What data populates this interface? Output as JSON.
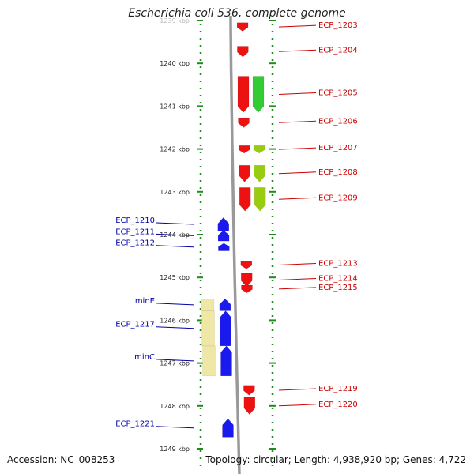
{
  "title": "Escherichia coli 536, complete genome",
  "footer": {
    "accession": "Accession: NC_008253",
    "summary": "Topology: circular; Length: 4,938,920 bp; Genes: 4,722"
  },
  "colors": {
    "plus_label": "#cc0000",
    "minus_label": "#0000aa",
    "gene_red": "#ee1111",
    "gene_blue": "#1a1aee",
    "cds_green": "#33cc33",
    "cds_lime": "#99cc11",
    "cds_yellow": "#eee7a6",
    "backbone": "#999999",
    "ticks": "#228822"
  },
  "ruler": {
    "unit": "kbp",
    "ticks": [
      {
        "kbp": 1239,
        "label": "1239 kbp",
        "faded": true
      },
      {
        "kbp": 1240,
        "label": "1240 kbp"
      },
      {
        "kbp": 1241,
        "label": "1241 kbp"
      },
      {
        "kbp": 1242,
        "label": "1242 kbp"
      },
      {
        "kbp": 1243,
        "label": "1243 kbp"
      },
      {
        "kbp": 1244,
        "label": "1244 kbp"
      },
      {
        "kbp": 1245,
        "label": "1245 kbp"
      },
      {
        "kbp": 1246,
        "label": "1246 kbp"
      },
      {
        "kbp": 1247,
        "label": "1247 kbp"
      },
      {
        "kbp": 1248,
        "label": "1248 kbp"
      },
      {
        "kbp": 1249,
        "label": "1249 kbp"
      }
    ]
  },
  "genes": [
    {
      "label": "ECP_1203",
      "strand": "+",
      "start_kbp": 1239.05,
      "end_kbp": 1239.25
    },
    {
      "label": "ECP_1204",
      "strand": "+",
      "start_kbp": 1239.6,
      "end_kbp": 1239.85
    },
    {
      "label": "ECP_1205",
      "strand": "+",
      "start_kbp": 1240.3,
      "end_kbp": 1241.15,
      "cds": "green"
    },
    {
      "label": "ECP_1206",
      "strand": "+",
      "start_kbp": 1241.27,
      "end_kbp": 1241.5
    },
    {
      "label": "ECP_1207",
      "strand": "+",
      "start_kbp": 1241.92,
      "end_kbp": 1242.1,
      "cds": "lime"
    },
    {
      "label": "ECP_1208",
      "strand": "+",
      "start_kbp": 1242.38,
      "end_kbp": 1242.77,
      "cds": "lime"
    },
    {
      "label": "ECP_1209",
      "strand": "+",
      "start_kbp": 1242.9,
      "end_kbp": 1243.45,
      "cds": "lime"
    },
    {
      "label": "ECP_1210",
      "strand": "-",
      "start_kbp": 1243.6,
      "end_kbp": 1243.92
    },
    {
      "label": "ECP_1211",
      "strand": "-",
      "start_kbp": 1243.9,
      "end_kbp": 1244.15
    },
    {
      "label": "ECP_1212",
      "strand": "-",
      "start_kbp": 1244.2,
      "end_kbp": 1244.38
    },
    {
      "label": "ECP_1213",
      "strand": "+",
      "start_kbp": 1244.62,
      "end_kbp": 1244.8
    },
    {
      "label": "ECP_1214",
      "strand": "+",
      "start_kbp": 1244.9,
      "end_kbp": 1245.22
    },
    {
      "label": "ECP_1215",
      "strand": "+",
      "start_kbp": 1245.18,
      "end_kbp": 1245.36
    },
    {
      "label": "minE",
      "strand": "-",
      "start_kbp": 1245.5,
      "end_kbp": 1245.78,
      "cds": "yellow"
    },
    {
      "label": "ECP_1217",
      "strand": "-",
      "start_kbp": 1245.78,
      "end_kbp": 1246.6,
      "cds": "yellow"
    },
    {
      "label": "minC",
      "strand": "-",
      "start_kbp": 1246.6,
      "end_kbp": 1247.3,
      "cds": "yellow"
    },
    {
      "label": "ECP_1219",
      "strand": "+",
      "start_kbp": 1247.52,
      "end_kbp": 1247.75
    },
    {
      "label": "ECP_1220",
      "strand": "+",
      "start_kbp": 1247.8,
      "end_kbp": 1248.2
    },
    {
      "label": "ECP_1221",
      "strand": "-",
      "start_kbp": 1248.3,
      "end_kbp": 1248.73
    }
  ]
}
